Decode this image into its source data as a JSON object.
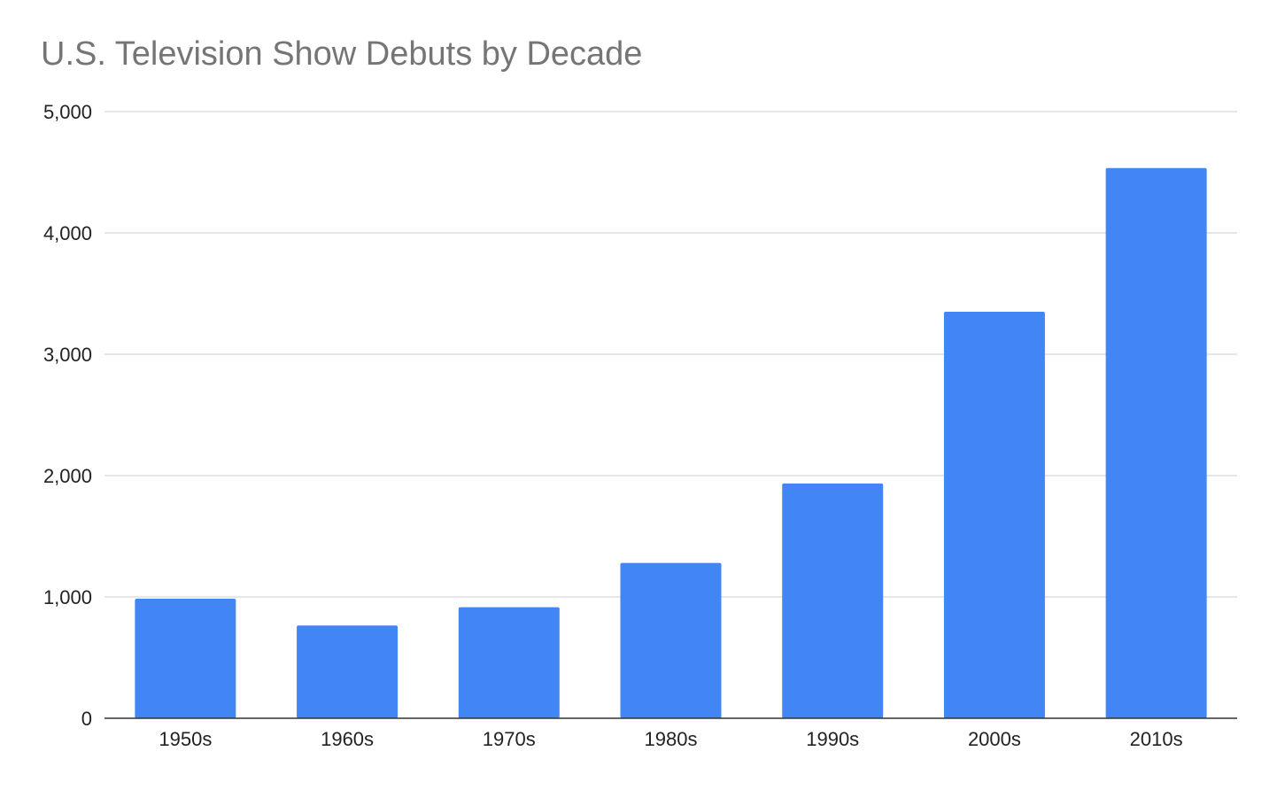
{
  "chart_data": {
    "type": "bar",
    "title": "U.S. Television Show Debuts by Decade",
    "xlabel": "",
    "ylabel": "",
    "categories": [
      "1950s",
      "1960s",
      "1970s",
      "1980s",
      "1990s",
      "2000s",
      "2010s"
    ],
    "values": [
      985,
      765,
      915,
      1280,
      1935,
      3350,
      4535
    ],
    "ylim": [
      0,
      5000
    ],
    "yticks": [
      0,
      1000,
      2000,
      3000,
      4000,
      5000
    ],
    "ytick_labels": [
      "0",
      "1,000",
      "2,000",
      "3,000",
      "4,000",
      "5,000"
    ],
    "grid": true,
    "legend": "none",
    "colors": {
      "bar": "#4285f4",
      "grid": "#cccccc",
      "axis": "#333333",
      "title": "#757575"
    }
  }
}
